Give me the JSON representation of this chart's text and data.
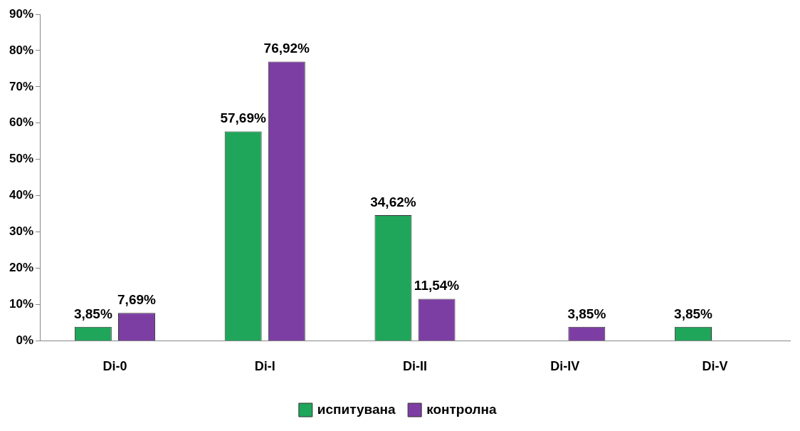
{
  "chart_data": {
    "type": "bar",
    "categories": [
      "Di-0",
      "Di-I",
      "Di-II",
      "Di-IV",
      "Di-V"
    ],
    "series": [
      {
        "name": "испитувана",
        "color": "#1fa65a",
        "values": [
          3.85,
          57.69,
          34.62,
          null,
          3.85
        ],
        "value_labels": [
          "3,85%",
          "57,69%",
          "34,62%",
          null,
          "3,85%"
        ]
      },
      {
        "name": "контролна",
        "color": "#7d3ea3",
        "values": [
          7.69,
          76.92,
          11.54,
          3.85,
          null
        ],
        "value_labels": [
          "7,69%",
          "76,92%",
          "11,54%",
          "3,85%",
          null
        ]
      }
    ],
    "ylim": [
      0,
      90
    ],
    "yticks": [
      {
        "value": 0,
        "label": "0%"
      },
      {
        "value": 10,
        "label": "10%"
      },
      {
        "value": 20,
        "label": "20%"
      },
      {
        "value": 30,
        "label": "30%"
      },
      {
        "value": 40,
        "label": "40%"
      },
      {
        "value": 50,
        "label": "50%"
      },
      {
        "value": 60,
        "label": "60%"
      },
      {
        "value": 70,
        "label": "70%"
      },
      {
        "value": 80,
        "label": "80%"
      },
      {
        "value": 90,
        "label": "90%"
      }
    ],
    "grid": false,
    "legend": "bottom"
  }
}
